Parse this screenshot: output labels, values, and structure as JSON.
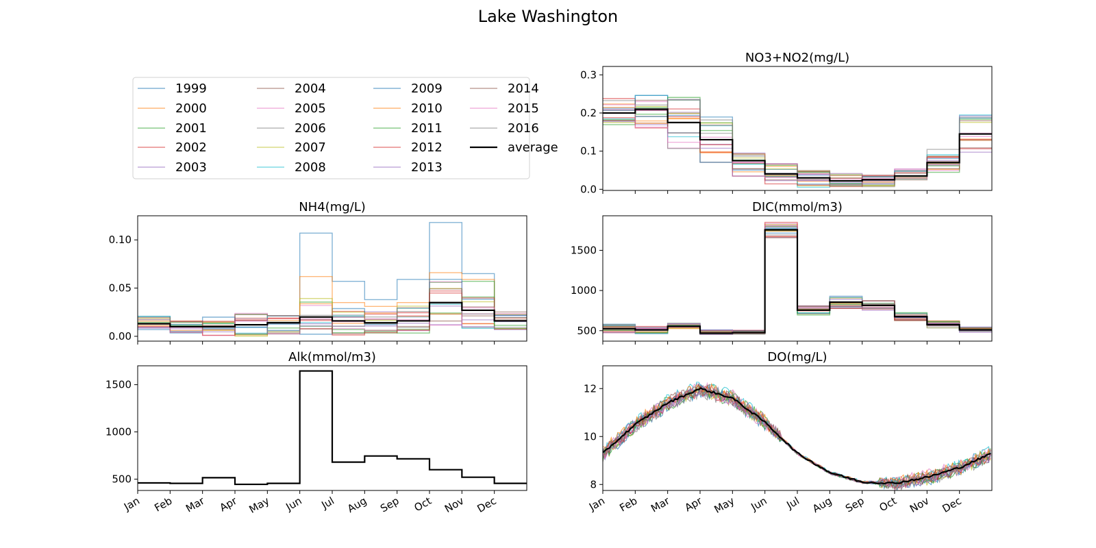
{
  "figure": {
    "title": "Lake Washington"
  },
  "legend": {
    "entries": [
      "1999",
      "2000",
      "2001",
      "2002",
      "2003",
      "2004",
      "2005",
      "2006",
      "2007",
      "2008",
      "2009",
      "2010",
      "2011",
      "2012",
      "2013",
      "2014",
      "2015",
      "2016",
      "average"
    ],
    "colors": [
      "#1f77b4",
      "#ff7f0e",
      "#2ca02c",
      "#d62728",
      "#9467bd",
      "#8c564b",
      "#e377c2",
      "#7f7f7f",
      "#bcbd22",
      "#17becf",
      "#1f77b4",
      "#ff7f0e",
      "#2ca02c",
      "#d62728",
      "#9467bd",
      "#8c564b",
      "#e377c2",
      "#7f7f7f",
      "#000000"
    ],
    "placement": "top-left panel"
  },
  "months": [
    "Jan",
    "Feb",
    "Mar",
    "Apr",
    "May",
    "Jun",
    "Jul",
    "Aug",
    "Sep",
    "Oct",
    "Nov",
    "Dec"
  ],
  "chart_data": [
    {
      "type": "line",
      "title": "NO3+NO2(mg/L)",
      "x": [
        "Jan",
        "Feb",
        "Mar",
        "Apr",
        "May",
        "Jun",
        "Jul",
        "Aug",
        "Sep",
        "Oct",
        "Nov",
        "Dec"
      ],
      "ylim": [
        -0.003,
        0.322
      ],
      "yticks": [
        0.0,
        0.1,
        0.2,
        0.3
      ],
      "ytick_labels": [
        "0.0",
        "0.1",
        "0.2",
        "0.3"
      ],
      "average": [
        0.2,
        0.21,
        0.175,
        0.13,
        0.075,
        0.04,
        0.03,
        0.022,
        0.025,
        0.035,
        0.07,
        0.145
      ],
      "spread": [
        0.04,
        0.05,
        0.07,
        0.06,
        0.05,
        0.035,
        0.025,
        0.02,
        0.02,
        0.02,
        0.035,
        0.05
      ],
      "style": "monthly-step"
    },
    {
      "type": "line",
      "title": "NH4(mg/L)",
      "x": [
        "Jan",
        "Feb",
        "Mar",
        "Apr",
        "May",
        "Jun",
        "Jul",
        "Aug",
        "Sep",
        "Oct",
        "Nov",
        "Dec"
      ],
      "ylim": [
        -0.005,
        0.125
      ],
      "yticks": [
        0.0,
        0.05,
        0.1
      ],
      "ytick_labels": [
        "0.00",
        "0.05",
        "0.10"
      ],
      "average": [
        0.013,
        0.01,
        0.01,
        0.012,
        0.014,
        0.02,
        0.016,
        0.014,
        0.016,
        0.035,
        0.027,
        0.016
      ],
      "spread": [
        0.008,
        0.007,
        0.01,
        0.012,
        0.012,
        0.02,
        0.015,
        0.014,
        0.016,
        0.025,
        0.02,
        0.01
      ],
      "highlights": [
        {
          "month": "Jun",
          "values": [
            0.107,
            0.062
          ]
        },
        {
          "month": "Jul",
          "values": [
            0.057,
            0.035
          ]
        },
        {
          "month": "Aug",
          "values": [
            0.038,
            0.031
          ]
        },
        {
          "month": "Sep",
          "values": [
            0.059,
            0.035
          ]
        },
        {
          "month": "Oct",
          "values": [
            0.118,
            0.066,
            0.056,
            0.047
          ]
        },
        {
          "month": "Nov",
          "values": [
            0.065,
            0.059,
            0.057
          ]
        }
      ],
      "style": "monthly-step"
    },
    {
      "type": "line",
      "title": "DIC(mmol/m3)",
      "x": [
        "Jan",
        "Feb",
        "Mar",
        "Apr",
        "May",
        "Jun",
        "Jul",
        "Aug",
        "Sep",
        "Oct",
        "Nov",
        "Dec"
      ],
      "ylim": [
        370,
        1930
      ],
      "yticks": [
        500,
        1000,
        1500
      ],
      "ytick_labels": [
        "500",
        "1000",
        "1500"
      ],
      "average": [
        525,
        510,
        555,
        470,
        475,
        1755,
        755,
        855,
        815,
        675,
        575,
        510
      ],
      "spread": [
        60,
        50,
        40,
        40,
        30,
        100,
        60,
        80,
        60,
        50,
        50,
        40
      ],
      "style": "monthly-step"
    },
    {
      "type": "line",
      "title": "Alk(mmol/m3)",
      "x": [
        "Jan",
        "Feb",
        "Mar",
        "Apr",
        "May",
        "Jun",
        "Jul",
        "Aug",
        "Sep",
        "Oct",
        "Nov",
        "Dec"
      ],
      "ylim": [
        380,
        1700
      ],
      "yticks": [
        500,
        1000,
        1500
      ],
      "ytick_labels": [
        "500",
        "1000",
        "1500"
      ],
      "average": [
        460,
        455,
        515,
        445,
        455,
        1645,
        680,
        745,
        715,
        600,
        520,
        455
      ],
      "spread": [
        0,
        0,
        0,
        0,
        0,
        0,
        0,
        0,
        0,
        0,
        0,
        0
      ],
      "style": "monthly-step"
    },
    {
      "type": "line",
      "title": "DO(mg/L)",
      "x": [
        "Jan",
        "Feb",
        "Mar",
        "Apr",
        "May",
        "Jun",
        "Jul",
        "Aug",
        "Sep",
        "Oct",
        "Nov",
        "Dec"
      ],
      "ylim": [
        7.75,
        12.95
      ],
      "yticks": [
        8,
        10,
        12
      ],
      "ytick_labels": [
        "8",
        "10",
        "12"
      ],
      "average_monthly": [
        9.3,
        10.5,
        11.4,
        12.0,
        11.6,
        10.6,
        9.3,
        8.5,
        8.1,
        8.05,
        8.3,
        8.7,
        9.3
      ],
      "style": "daily-noisy"
    }
  ]
}
